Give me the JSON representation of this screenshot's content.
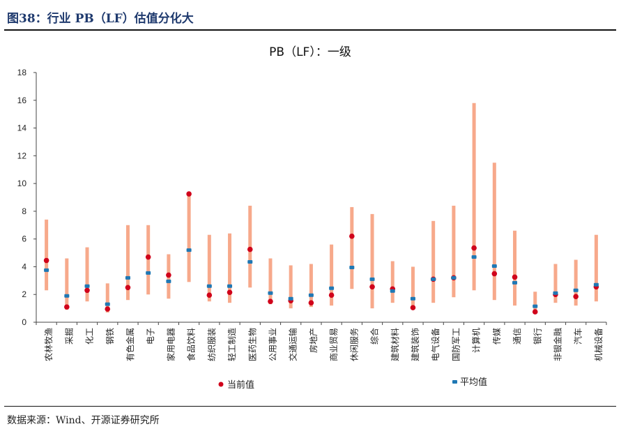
{
  "figure": {
    "title": "图38：行业 PB（LF）估值分化大",
    "source": "数据来源：Wind、开源证券研究所"
  },
  "colors": {
    "range": "#f7a98b",
    "current": "#d0021b",
    "average": "#1f78b4",
    "title": "#1f3a6e"
  },
  "chart_data": {
    "type": "scatter",
    "title": "PB（LF）：一级",
    "xlabel": "",
    "ylabel": "",
    "ylim": [
      0,
      18
    ],
    "yticks": [
      "0",
      "2",
      "4",
      "6",
      "8",
      "10",
      "12",
      "14",
      "16",
      "18"
    ],
    "grid": false,
    "legend_position": "bottom",
    "categories": [
      "农林牧渔",
      "采掘",
      "化工",
      "钢铁",
      "有色金属",
      "电子",
      "家用电器",
      "食品饮料",
      "纺织服装",
      "轻工制造",
      "医药生物",
      "公用事业",
      "交通运输",
      "房地产",
      "商业贸易",
      "休闲服务",
      "综合",
      "建筑材料",
      "建筑装饰",
      "电气设备",
      "国防军工",
      "计算机",
      "传媒",
      "通信",
      "银行",
      "非银金融",
      "汽车",
      "机械设备"
    ],
    "range_low": [
      2.3,
      0.9,
      1.5,
      0.7,
      1.6,
      2.0,
      1.7,
      2.9,
      1.5,
      1.4,
      2.5,
      1.3,
      1.0,
      1.1,
      1.2,
      2.4,
      1.0,
      1.4,
      0.9,
      1.4,
      1.8,
      2.3,
      1.6,
      1.2,
      0.6,
      1.4,
      1.2,
      1.5
    ],
    "range_high": [
      7.4,
      4.6,
      5.4,
      2.8,
      7.0,
      7.0,
      4.9,
      9.4,
      6.3,
      6.4,
      8.4,
      4.6,
      4.1,
      4.2,
      5.6,
      8.3,
      7.8,
      4.4,
      4.0,
      7.3,
      8.4,
      15.8,
      11.5,
      6.6,
      2.2,
      4.2,
      4.5,
      6.3
    ],
    "series": [
      {
        "name": "当前值",
        "values": [
          4.45,
          1.1,
          2.3,
          0.95,
          2.5,
          4.7,
          3.4,
          9.25,
          1.95,
          2.15,
          5.25,
          1.5,
          1.55,
          1.4,
          1.95,
          6.2,
          2.55,
          2.4,
          1.05,
          3.1,
          3.2,
          5.35,
          3.5,
          3.25,
          0.75,
          2.0,
          1.85,
          2.55
        ]
      },
      {
        "name": "平均值",
        "values": [
          3.75,
          1.9,
          2.6,
          1.3,
          3.2,
          3.55,
          2.95,
          5.2,
          2.6,
          2.6,
          4.35,
          2.1,
          1.7,
          1.95,
          2.45,
          3.95,
          3.1,
          2.25,
          1.7,
          3.1,
          3.2,
          4.7,
          4.05,
          2.85,
          1.15,
          2.1,
          2.3,
          2.7
        ]
      }
    ]
  }
}
